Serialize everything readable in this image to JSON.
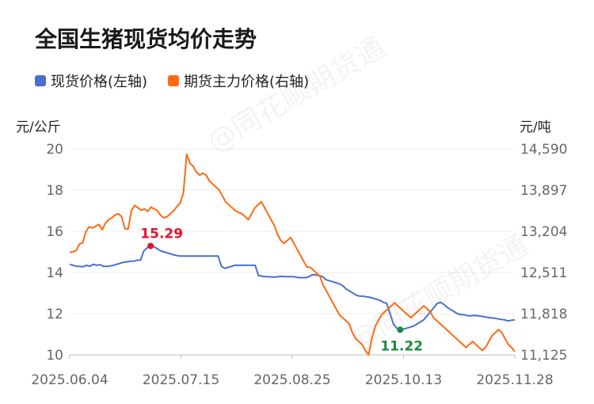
{
  "title": "全国生猪现货均价走势",
  "legend": [
    {
      "label": "现货价格(左轴)",
      "color": "#4a6fd0"
    },
    {
      "label": "期货主力价格(右轴)",
      "color": "#ff6a13"
    }
  ],
  "left_unit": "元/公斤",
  "right_unit": "元/吨",
  "watermark": "@同花顺期货通",
  "chart_data": {
    "type": "line",
    "title": "全国生猪现货均价走势",
    "x_ticks": [
      "2025.06.04",
      "2025.07.15",
      "2025.08.25",
      "2025.10.13",
      "2025.11.28"
    ],
    "ylim_left": [
      10,
      20
    ],
    "ylim_right": [
      11125,
      14590
    ],
    "y_ticks_left": [
      "20",
      "18",
      "16",
      "14",
      "12",
      "10"
    ],
    "y_ticks_right": [
      "14,590",
      "13,897",
      "13,204",
      "12,511",
      "11,818",
      "11,125"
    ],
    "series": [
      {
        "name": "现货价格(左轴)",
        "axis": "left",
        "color": "#4a6fd0",
        "values": [
          14.4,
          14.35,
          14.3,
          14.3,
          14.28,
          14.35,
          14.3,
          14.4,
          14.35,
          14.38,
          14.3,
          14.3,
          14.32,
          14.35,
          14.4,
          14.45,
          14.5,
          14.52,
          14.55,
          14.55,
          14.6,
          14.6,
          15.05,
          15.2,
          15.29,
          15.25,
          15.15,
          15.05,
          15.0,
          14.95,
          14.9,
          14.85,
          14.82,
          14.8,
          14.8,
          14.8,
          14.8,
          14.8,
          14.8,
          14.8,
          14.8,
          14.8,
          14.8,
          14.8,
          14.8,
          14.3,
          14.2,
          14.25,
          14.3,
          14.35,
          14.35,
          14.35,
          14.35,
          14.35,
          14.35,
          14.35,
          13.85,
          13.82,
          13.8,
          13.8,
          13.78,
          13.78,
          13.8,
          13.82,
          13.8,
          13.8,
          13.8,
          13.78,
          13.75,
          13.75,
          13.75,
          13.8,
          13.9,
          13.88,
          13.85,
          13.8,
          13.65,
          13.6,
          13.55,
          13.5,
          13.45,
          13.35,
          13.2,
          13.1,
          13.0,
          12.9,
          12.85,
          12.85,
          12.82,
          12.8,
          12.75,
          12.7,
          12.65,
          12.55,
          12.5,
          12.0,
          11.5,
          11.3,
          11.22,
          11.25,
          11.3,
          11.35,
          11.4,
          11.5,
          11.6,
          11.7,
          11.9,
          12.1,
          12.3,
          12.5,
          12.55,
          12.45,
          12.3,
          12.2,
          12.1,
          12.0,
          11.95,
          11.95,
          11.9,
          11.9,
          11.92,
          11.9,
          11.88,
          11.85,
          11.82,
          11.8,
          11.78,
          11.75,
          11.72,
          11.7,
          11.65,
          11.68,
          11.7
        ]
      },
      {
        "name": "期货主力价格(右轴)",
        "axis": "right",
        "color": "#ff6a13",
        "values": [
          12850,
          12860,
          12880,
          12990,
          13010,
          13200,
          13280,
          13260,
          13290,
          13320,
          13230,
          13340,
          13400,
          13430,
          13480,
          13500,
          13450,
          13250,
          13240,
          13550,
          13640,
          13600,
          13560,
          13580,
          13540,
          13610,
          13580,
          13550,
          13470,
          13430,
          13450,
          13500,
          13550,
          13620,
          13680,
          13850,
          14500,
          14350,
          14300,
          14200,
          14150,
          14180,
          14150,
          14050,
          14000,
          13950,
          13900,
          13800,
          13700,
          13650,
          13600,
          13550,
          13520,
          13500,
          13450,
          13400,
          13500,
          13600,
          13650,
          13700,
          13600,
          13500,
          13400,
          13300,
          13150,
          13050,
          13000,
          13050,
          13100,
          13000,
          12900,
          12800,
          12700,
          12600,
          12600,
          12550,
          12500,
          12450,
          12300,
          12200,
          12100,
          12000,
          11900,
          11800,
          11750,
          11700,
          11650,
          11500,
          11400,
          11350,
          11300,
          11200,
          11125,
          11400,
          11600,
          11700,
          11800,
          11850,
          11900,
          11950,
          12000,
          11950,
          11900,
          11850,
          11800,
          11750,
          11800,
          11850,
          11900,
          11950,
          11900,
          11850,
          11750,
          11700,
          11650,
          11600,
          11550,
          11500,
          11450,
          11400,
          11350,
          11300,
          11250,
          11300,
          11350,
          11300,
          11250,
          11200,
          11250,
          11350,
          11450,
          11500,
          11550,
          11500,
          11400,
          11300,
          11250,
          11180
        ]
      }
    ],
    "annotations": [
      {
        "label": "15.29",
        "series": 0,
        "index": 24,
        "color": "#e8102f"
      },
      {
        "label": "11.22",
        "series": 0,
        "index": 98,
        "color": "#1e8a3c"
      }
    ]
  }
}
